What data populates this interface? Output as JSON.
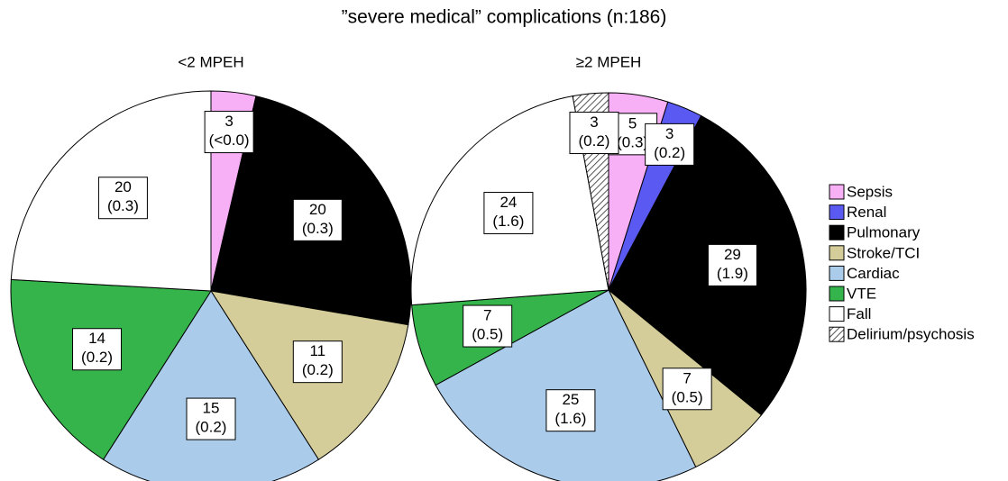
{
  "chart_data": {
    "type": "pie",
    "title": "”severe medical” complications (n:186)",
    "categories": [
      "Sepsis",
      "Renal",
      "Pulmonary",
      "Stroke/TCI",
      "Cardiac",
      "VTE",
      "Fall",
      "Delirium/psychosis"
    ],
    "colors": [
      "#f7b0f5",
      "#5a5af2",
      "#000000",
      "#d4cd9a",
      "#aacbea",
      "#35b44b",
      "#ffffff",
      "#cfcfcf"
    ],
    "hatched": [
      7
    ],
    "pies": [
      {
        "subtitle": "<2 MPEH",
        "values": [
          3,
          null,
          20,
          11,
          15,
          14,
          20,
          null
        ],
        "rate_labels": [
          "(<0.0)",
          null,
          "(0.3)",
          "(0.2)",
          "(0.2)",
          "(0.2)",
          "(0.3)",
          null
        ]
      },
      {
        "subtitle": "≥2 MPEH",
        "values": [
          5,
          3,
          29,
          7,
          25,
          7,
          24,
          3
        ],
        "rate_labels": [
          "(0.3)",
          "(0.2)",
          "(1.9)",
          "(0.5)",
          "(1.6)",
          "(0.5)",
          "(1.6)",
          "(0.2)"
        ]
      }
    ]
  }
}
